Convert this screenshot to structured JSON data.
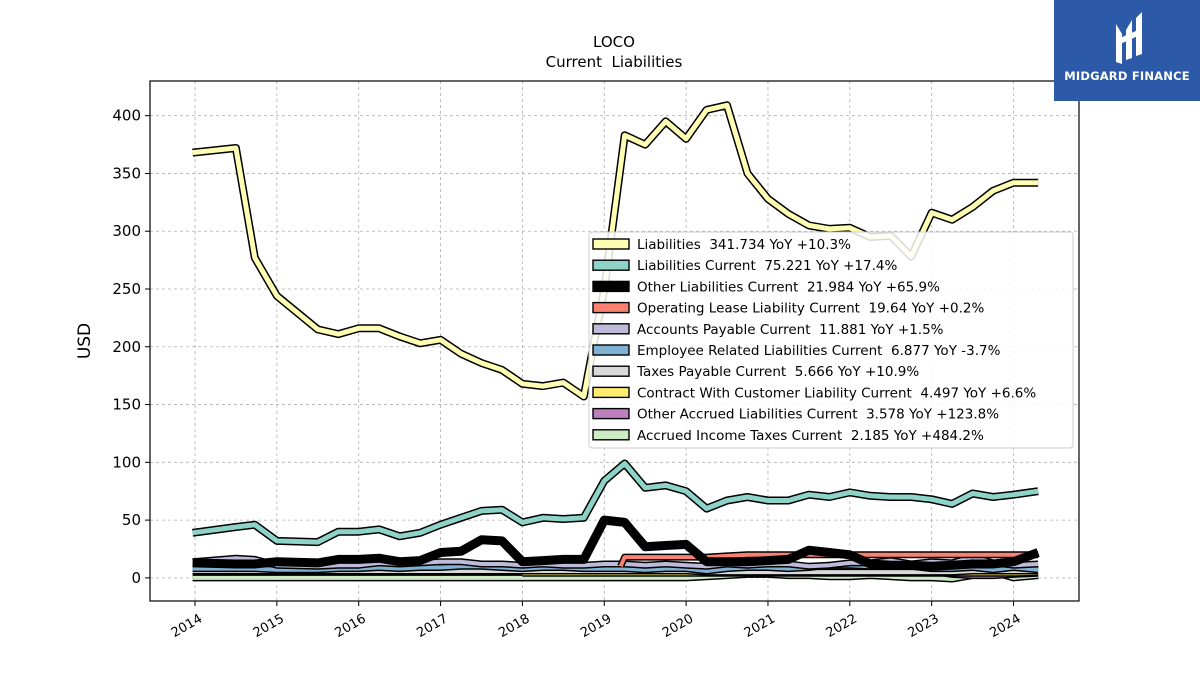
{
  "brand": {
    "name": "MIDGARD FINANCE",
    "bg_color": "#2c5aa8"
  },
  "chart_data": {
    "type": "line",
    "title": "LOCO",
    "subtitle": "Current  Liabilities",
    "xlabel": "",
    "ylabel": "USD",
    "xlim": [
      2013.45,
      2024.8
    ],
    "ylim": [
      -20,
      430
    ],
    "yticks": [
      0,
      50,
      100,
      150,
      200,
      250,
      300,
      350,
      400
    ],
    "xticks": [
      "2014",
      "2015",
      "2016",
      "2017",
      "2018",
      "2019",
      "2020",
      "2021",
      "2022",
      "2023",
      "2024"
    ],
    "grid": true,
    "legend_position": "center-right",
    "series": [
      {
        "name": "Liabilities",
        "legend": "Liabilities  341.734 YoY +10.3%",
        "color": "#ffffb3",
        "x": [
          2013.97,
          2014.5,
          2014.73,
          2015.0,
          2015.5,
          2015.75,
          2016.0,
          2016.25,
          2016.5,
          2016.75,
          2017.0,
          2017.25,
          2017.5,
          2017.75,
          2018.0,
          2018.25,
          2018.5,
          2018.75,
          2019.0,
          2019.25,
          2019.5,
          2019.75,
          2020.0,
          2020.25,
          2020.5,
          2020.75,
          2021.0,
          2021.25,
          2021.5,
          2021.75,
          2022.0,
          2022.25,
          2022.5,
          2022.75,
          2023.0,
          2023.25,
          2023.5,
          2023.75,
          2024.0,
          2024.3
        ],
        "y": [
          368,
          372,
          277,
          244,
          215,
          211,
          216,
          216,
          209,
          203,
          206,
          194,
          186,
          180,
          168,
          166,
          169,
          157,
          250,
          383,
          375,
          395,
          380,
          405,
          409,
          350,
          328,
          315,
          305,
          302,
          303,
          295,
          296,
          278,
          316,
          310,
          321,
          335,
          342,
          342
        ]
      },
      {
        "name": "Liabilities Current",
        "legend": "Liabilities Current  75.221 YoY +17.4%",
        "color": "#8dd3c7",
        "x": [
          2013.97,
          2014.5,
          2014.73,
          2015.0,
          2015.5,
          2015.75,
          2016.0,
          2016.25,
          2016.5,
          2016.75,
          2017.0,
          2017.25,
          2017.5,
          2017.75,
          2018.0,
          2018.25,
          2018.5,
          2018.75,
          2019.0,
          2019.25,
          2019.5,
          2019.75,
          2020.0,
          2020.25,
          2020.5,
          2020.75,
          2021.0,
          2021.25,
          2021.5,
          2021.75,
          2022.0,
          2022.25,
          2022.5,
          2022.75,
          2023.0,
          2023.25,
          2023.5,
          2023.75,
          2024.0,
          2024.3
        ],
        "y": [
          39,
          44,
          46,
          32,
          31,
          40,
          40,
          42,
          36,
          39,
          46,
          52,
          58,
          59,
          48,
          52,
          51,
          52,
          84,
          99,
          78,
          80,
          75,
          60,
          67,
          70,
          67,
          67,
          72,
          70,
          74,
          71,
          70,
          70,
          68,
          64,
          73,
          70,
          72,
          75
        ]
      },
      {
        "name": "Other Liabilities Current",
        "legend": "Other Liabilities Current  21.984 YoY +65.9%",
        "color": "#000000",
        "x": [
          2013.97,
          2014.5,
          2014.73,
          2015.0,
          2015.5,
          2015.75,
          2016.0,
          2016.25,
          2016.5,
          2016.75,
          2017.0,
          2017.25,
          2017.5,
          2017.75,
          2018.0,
          2018.25,
          2018.5,
          2018.75,
          2019.0,
          2019.25,
          2019.5,
          2019.75,
          2020.0,
          2020.25,
          2020.5,
          2020.75,
          2021.0,
          2021.25,
          2021.5,
          2021.75,
          2022.0,
          2022.25,
          2022.5,
          2022.75,
          2023.0,
          2023.25,
          2023.5,
          2023.75,
          2024.0,
          2024.3
        ],
        "y": [
          13,
          12,
          12,
          14,
          13,
          16,
          16,
          17,
          14,
          15,
          22,
          23,
          33,
          32,
          14,
          15,
          16,
          16,
          50,
          48,
          27,
          28,
          29,
          14,
          14,
          14,
          15,
          16,
          24,
          22,
          20,
          12,
          11,
          11,
          10,
          11,
          12,
          12,
          14,
          22
        ]
      },
      {
        "name": "Operating Lease Liability Current",
        "legend": "Operating Lease Liability Current  19.64 YoY +0.2%",
        "color": "#fb8072",
        "x": [
          2019.2,
          2019.25,
          2019.5,
          2019.75,
          2020.0,
          2020.25,
          2020.5,
          2020.75,
          2021.0,
          2021.25,
          2021.5,
          2021.75,
          2022.0,
          2022.25,
          2022.5,
          2022.75,
          2023.0,
          2023.25,
          2023.5,
          2023.75,
          2024.0,
          2024.3
        ],
        "y": [
          10,
          18,
          18,
          18,
          18,
          18,
          19,
          20,
          20,
          20,
          20,
          20,
          20,
          20,
          20,
          20,
          20,
          20,
          20,
          20,
          20,
          20
        ]
      },
      {
        "name": "Accounts Payable Current",
        "legend": "Accounts Payable Current  11.881 YoY +1.5%",
        "color": "#bebada",
        "x": [
          2013.97,
          2014.5,
          2014.73,
          2015.0,
          2015.5,
          2015.75,
          2016.0,
          2016.25,
          2016.5,
          2016.75,
          2017.0,
          2017.25,
          2017.5,
          2017.75,
          2018.0,
          2018.25,
          2018.5,
          2018.75,
          2019.0,
          2019.25,
          2019.5,
          2019.75,
          2020.0,
          2020.25,
          2020.5,
          2020.75,
          2021.0,
          2021.25,
          2021.5,
          2021.75,
          2022.0,
          2022.25,
          2022.5,
          2022.75,
          2023.0,
          2023.25,
          2023.5,
          2023.75,
          2024.0,
          2024.3
        ],
        "y": [
          14,
          17,
          16,
          11,
          10,
          11,
          11,
          13,
          12,
          13,
          14,
          14,
          12,
          12,
          11,
          12,
          11,
          11,
          12,
          12,
          11,
          12,
          11,
          10,
          12,
          11,
          12,
          12,
          10,
          11,
          13,
          13,
          15,
          12,
          14,
          13,
          18,
          13,
          11,
          12
        ]
      },
      {
        "name": "Employee Related Liabilities Current",
        "legend": "Employee Related Liabilities Current  6.877 YoY -3.7%",
        "color": "#80b1d3",
        "x": [
          2013.97,
          2014.5,
          2014.73,
          2015.0,
          2015.5,
          2015.75,
          2016.0,
          2016.25,
          2016.5,
          2016.75,
          2017.0,
          2017.25,
          2017.5,
          2017.75,
          2018.0,
          2018.25,
          2018.5,
          2018.75,
          2019.0,
          2019.25,
          2019.5,
          2019.75,
          2020.0,
          2020.25,
          2020.5,
          2020.75,
          2021.0,
          2021.25,
          2021.5,
          2021.75,
          2022.0,
          2022.25,
          2022.5,
          2022.75,
          2023.0,
          2023.25,
          2023.5,
          2023.75,
          2024.0,
          2024.3
        ],
        "y": [
          8,
          8,
          8,
          7,
          7,
          8,
          8,
          9,
          8,
          9,
          9,
          10,
          10,
          9,
          8,
          9,
          9,
          8,
          8,
          8,
          7,
          8,
          8,
          6,
          8,
          9,
          9,
          8,
          9,
          11,
          11,
          10,
          11,
          10,
          8,
          8,
          9,
          7,
          9,
          7
        ]
      },
      {
        "name": "Taxes Payable Current",
        "legend": "Taxes Payable Current  5.666 YoY +10.9%",
        "color": "#d9d9d9",
        "x": [
          2013.97,
          2014.5,
          2014.73,
          2015.0,
          2015.5,
          2015.75,
          2016.0,
          2016.25,
          2016.5,
          2016.75,
          2017.0,
          2017.25,
          2017.5,
          2017.75,
          2018.0,
          2018.25,
          2018.5,
          2018.75,
          2019.0,
          2019.25,
          2019.5,
          2019.75,
          2020.0,
          2020.25,
          2020.5,
          2020.75,
          2021.0,
          2021.25,
          2021.5,
          2021.75,
          2022.0,
          2022.25,
          2022.5,
          2022.75,
          2023.0,
          2023.25,
          2023.5,
          2023.75,
          2024.0,
          2024.3
        ],
        "y": [
          6,
          6,
          6,
          6,
          6,
          6,
          6,
          6,
          6,
          6,
          6,
          6,
          6,
          6,
          6,
          6,
          6,
          6,
          6,
          6,
          6,
          6,
          6,
          5,
          5,
          5,
          5,
          5,
          5,
          5,
          5,
          5,
          5,
          5,
          5,
          5,
          6,
          6,
          6,
          6
        ]
      },
      {
        "name": "Contract With Customer Liability Current",
        "legend": "Contract With Customer Liability Current  4.497 YoY +6.6%",
        "color": "#ffed6f",
        "x": [
          2018.0,
          2018.25,
          2018.5,
          2018.75,
          2019.0,
          2019.25,
          2019.5,
          2019.75,
          2020.0,
          2020.25,
          2020.5,
          2020.75,
          2021.0,
          2021.25,
          2021.5,
          2021.75,
          2022.0,
          2022.25,
          2022.5,
          2022.75,
          2023.0,
          2023.25,
          2023.5,
          2023.75,
          2024.0,
          2024.3
        ],
        "y": [
          4,
          4,
          4,
          4,
          4,
          4,
          4,
          4,
          4,
          4,
          4,
          4,
          4,
          4,
          4,
          4,
          4,
          4,
          4,
          4,
          4,
          4,
          4,
          4,
          4,
          4.5
        ]
      },
      {
        "name": "Other Accrued Liabilities Current",
        "legend": "Other Accrued Liabilities Current  3.578 YoY +123.8%",
        "color": "#bc80bd",
        "x": [
          2013.97,
          2014.5,
          2014.73,
          2015.0,
          2015.5,
          2015.75,
          2016.0,
          2016.25,
          2016.5,
          2016.75,
          2017.0,
          2017.25,
          2017.5,
          2017.75,
          2018.0,
          2018.25,
          2018.5,
          2018.75,
          2019.0,
          2019.25,
          2019.5,
          2019.75,
          2020.0,
          2020.25,
          2020.5,
          2020.75,
          2021.0,
          2021.25,
          2021.5,
          2021.75,
          2022.0,
          2022.25,
          2022.5,
          2022.75,
          2023.0,
          2023.25,
          2023.5,
          2023.75,
          2024.0,
          2024.3
        ],
        "y": [
          7,
          8,
          8,
          7,
          6,
          7,
          7,
          8,
          7,
          8,
          7,
          8,
          7,
          8,
          7,
          8,
          7,
          8,
          7,
          8,
          7,
          6,
          7,
          6,
          8,
          8,
          7,
          7,
          8,
          7,
          7,
          8,
          7,
          8,
          6,
          3,
          2,
          2,
          3,
          4
        ]
      },
      {
        "name": "Accrued Income Taxes Current",
        "legend": "Accrued Income Taxes Current  2.185 YoY +484.2%",
        "color": "#ccebc5",
        "x": [
          2013.97,
          2014.5,
          2014.73,
          2015.0,
          2015.5,
          2015.75,
          2016.0,
          2016.25,
          2016.5,
          2016.75,
          2017.0,
          2017.25,
          2017.5,
          2017.75,
          2018.0,
          2018.25,
          2018.5,
          2018.75,
          2019.0,
          2019.25,
          2019.5,
          2019.75,
          2020.0,
          2020.25,
          2020.5,
          2020.75,
          2021.0,
          2021.25,
          2021.5,
          2021.75,
          2022.0,
          2022.25,
          2022.5,
          2022.75,
          2023.0,
          2023.25,
          2023.5,
          2023.75,
          2024.0,
          2024.3
        ],
        "y": [
          0,
          0,
          0,
          0,
          0,
          0,
          0,
          0,
          0,
          0,
          0,
          0,
          0,
          0,
          0,
          0,
          0,
          0,
          0,
          0,
          0,
          0,
          0,
          1,
          2,
          3,
          3,
          2,
          2,
          1,
          1,
          2,
          1,
          0,
          0,
          -1,
          2,
          5,
          0,
          2
        ]
      }
    ]
  }
}
